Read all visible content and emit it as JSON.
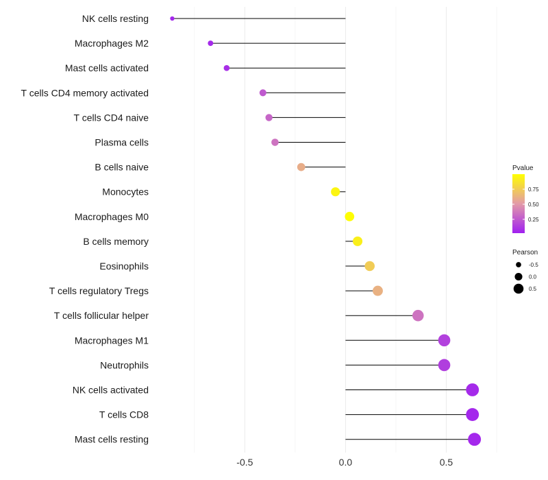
{
  "chart_data": {
    "type": "lollipop",
    "xlim": [
      -0.95,
      0.75
    ],
    "x_ticks": [
      -0.5,
      0.0,
      0.5
    ],
    "x_tick_labels": [
      "-0.5",
      "0.0",
      "0.5"
    ],
    "grid": true,
    "categories": [
      "NK cells resting",
      "Macrophages M2",
      "Mast cells activated",
      "T cells CD4 memory activated",
      "T cells CD4 naive",
      "Plasma cells",
      "B cells naive",
      "Monocytes",
      "Macrophages M0",
      "B cells memory",
      "Eosinophils",
      "T cells regulatory  Tregs",
      "T cells follicular helper",
      "Macrophages M1",
      "Neutrophils",
      "NK cells activated",
      "T cells CD8",
      "Mast cells resting"
    ],
    "pearson": [
      -0.86,
      -0.67,
      -0.59,
      -0.41,
      -0.38,
      -0.35,
      -0.22,
      -0.05,
      0.02,
      0.06,
      0.12,
      0.16,
      0.36,
      0.49,
      0.49,
      0.63,
      0.63,
      0.64
    ],
    "pvalue": [
      0.05,
      0.06,
      0.08,
      0.25,
      0.3,
      0.35,
      0.6,
      0.95,
      0.99,
      0.92,
      0.75,
      0.62,
      0.35,
      0.15,
      0.14,
      0.06,
      0.05,
      0.05
    ],
    "legend_pvalue": {
      "title": "Pvalue",
      "ticks": [
        0.25,
        0.5,
        0.75
      ],
      "tick_labels": [
        "0.25",
        "0.50",
        "0.75"
      ],
      "range": [
        0.02,
        1.0
      ],
      "color_low": "#A020F0",
      "color_mid": "#E39BA8",
      "color_high": "#FFFF00",
      "placement": "right"
    },
    "legend_pearson": {
      "title": "Pearson",
      "values": [
        -0.5,
        0.0,
        0.5
      ],
      "labels": [
        "-0.5",
        "0.0",
        "0.5"
      ],
      "placement": "right"
    }
  }
}
